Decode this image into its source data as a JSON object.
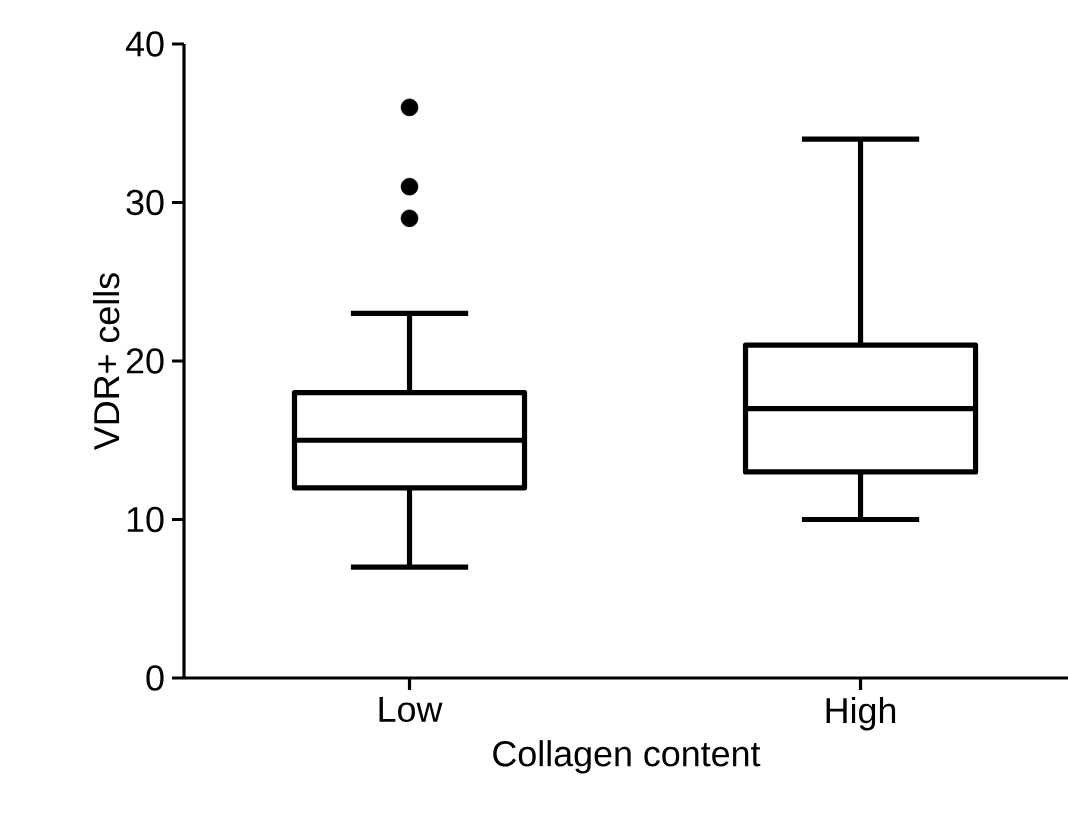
{
  "chart_data": {
    "type": "box",
    "xlabel": "Collagen content",
    "ylabel": "VDR+ cells",
    "categories": [
      "Low",
      "High"
    ],
    "boxes": [
      {
        "low": 7,
        "q1": 12,
        "median": 15,
        "q3": 18,
        "high": 23,
        "outliers": [
          36,
          29,
          31
        ]
      },
      {
        "low": 10,
        "q1": 13,
        "median": 17,
        "q3": 21,
        "high": 34
      }
    ],
    "color": "#000000",
    "ylim": [
      0,
      40
    ],
    "yticks": [
      0,
      10,
      20,
      30,
      40
    ]
  }
}
